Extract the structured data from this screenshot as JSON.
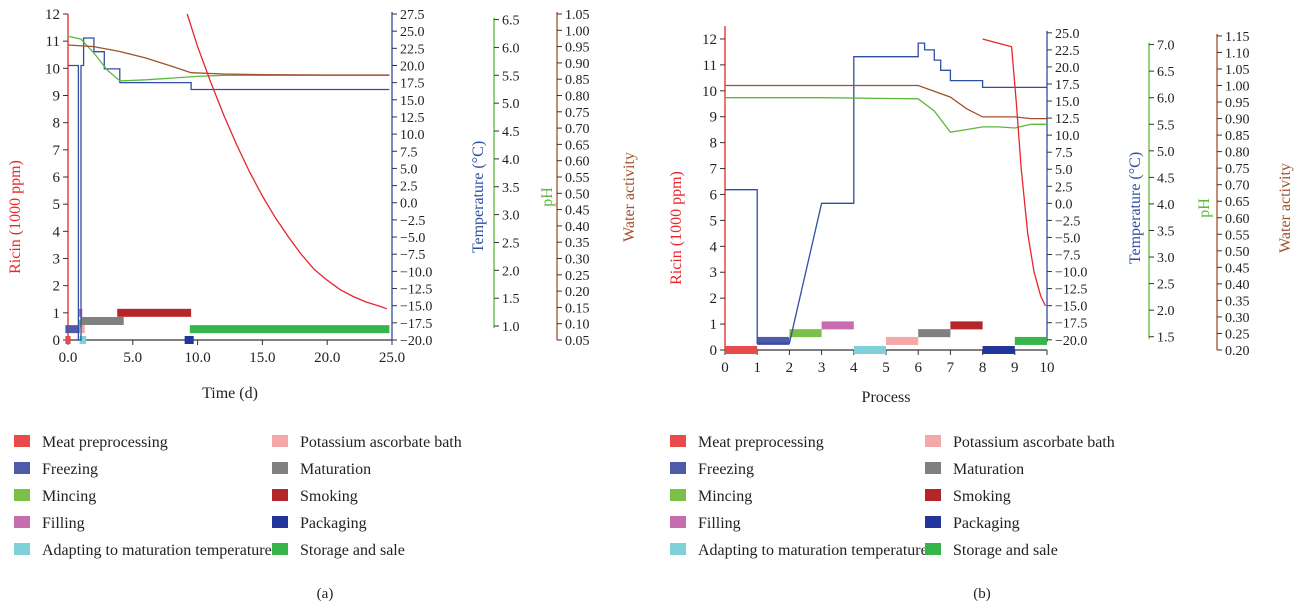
{
  "legend_items": [
    {
      "label": "Meat preprocessing",
      "color": "#e84b4b"
    },
    {
      "label": "Freezing",
      "color": "#4f5ba8"
    },
    {
      "label": "Mincing",
      "color": "#7cc04a"
    },
    {
      "label": "Filling",
      "color": "#c86cb0"
    },
    {
      "label": "Adapting to maturation temperature",
      "color": "#7fd0d8"
    },
    {
      "label": "Potassium ascorbate bath",
      "color": "#f4a8a8"
    },
    {
      "label": "Maturation",
      "color": "#808080"
    },
    {
      "label": "Smoking",
      "color": "#b5262b"
    },
    {
      "label": "Packaging",
      "color": "#22359a"
    },
    {
      "label": "Storage and sale",
      "color": "#35b54a"
    }
  ],
  "series_colors": {
    "ricin": "#e8262b",
    "temperature": "#2e4fa3",
    "ph": "#5cb83a",
    "water": "#a0522d"
  },
  "chart_data": [
    {
      "panel_label": "(a)",
      "type": "line",
      "xlabel": "Time (d)",
      "xlim": [
        0,
        25
      ],
      "x_ticks": [
        0,
        5,
        10,
        15,
        20,
        25
      ],
      "x_tick_labels": [
        "0.0",
        "5.0",
        "10.0",
        "15.0",
        "20.0",
        "25.0"
      ],
      "axes": {
        "ricin": {
          "label": "Ricin (1000 ppm)",
          "lim": [
            0,
            12
          ],
          "ticks": [
            0,
            1,
            2,
            3,
            4,
            5,
            6,
            7,
            8,
            9,
            10,
            11,
            12
          ],
          "tick_labels": [
            "0",
            "1",
            "2",
            "3",
            "4",
            "5",
            "6",
            "7",
            "8",
            "9",
            "10",
            "11",
            "12"
          ]
        },
        "temperature": {
          "label": "Temperature (°C)",
          "lim": [
            -20,
            27.5
          ],
          "ticks": [
            -20,
            -17.5,
            -15,
            -12.5,
            -10,
            -7.5,
            -5,
            -2.5,
            0,
            2.5,
            5,
            7.5,
            10,
            12.5,
            15,
            17.5,
            20,
            22.5,
            25,
            27.5
          ],
          "tick_labels": [
            "−20.0",
            "−17.5",
            "−15.0",
            "−12.5",
            "−10.0",
            "−7.5",
            "−5.0",
            "−2.5",
            "0.0",
            "2.5",
            "5.0",
            "7.5",
            "10.0",
            "12.5",
            "15.0",
            "17.5",
            "20.0",
            "22.5",
            "25.0",
            "27.5"
          ]
        },
        "ph": {
          "label": "pH",
          "lim": [
            0.75,
            6.6
          ],
          "ticks": [
            1,
            1.5,
            2,
            2.5,
            3,
            3.5,
            4,
            4.5,
            5,
            5.5,
            6,
            6.5
          ],
          "tick_labels": [
            "1.0",
            "1.5",
            "2.0",
            "2.5",
            "3.0",
            "3.5",
            "4.0",
            "4.5",
            "5.0",
            "5.5",
            "6.0",
            "6.5"
          ]
        },
        "water": {
          "label": "Water activity",
          "lim": [
            0.05,
            1.05
          ],
          "ticks": [
            0.05,
            0.1,
            0.15,
            0.2,
            0.25,
            0.3,
            0.35,
            0.4,
            0.45,
            0.5,
            0.55,
            0.6,
            0.65,
            0.7,
            0.75,
            0.8,
            0.85,
            0.9,
            0.95,
            1.0,
            1.05
          ],
          "tick_labels": [
            "0.05",
            "0.10",
            "0.15",
            "0.20",
            "0.25",
            "0.30",
            "0.35",
            "0.40",
            "0.45",
            "0.50",
            "0.55",
            "0.60",
            "0.65",
            "0.70",
            "0.75",
            "0.80",
            "0.85",
            "0.90",
            "0.95",
            "1.00",
            "1.05"
          ]
        }
      },
      "series": [
        {
          "key": "temperature",
          "step": true,
          "points": [
            [
              0,
              20
            ],
            [
              0.8,
              20
            ],
            [
              0.8,
              -20
            ],
            [
              1,
              -20
            ],
            [
              1,
              20
            ],
            [
              1.2,
              20
            ],
            [
              1.2,
              24
            ],
            [
              2,
              24
            ],
            [
              2,
              22
            ],
            [
              2.8,
              22
            ],
            [
              2.8,
              19.5
            ],
            [
              4,
              19.5
            ],
            [
              4,
              17.5
            ],
            [
              9.5,
              17.5
            ],
            [
              9.5,
              16.5
            ],
            [
              24.8,
              16.5
            ]
          ]
        },
        {
          "key": "ph",
          "points": [
            [
              0,
              6.2
            ],
            [
              1,
              6.15
            ],
            [
              2,
              5.9
            ],
            [
              3,
              5.6
            ],
            [
              4,
              5.4
            ],
            [
              6,
              5.42
            ],
            [
              8,
              5.45
            ],
            [
              10,
              5.48
            ],
            [
              12,
              5.5
            ],
            [
              15,
              5.5
            ],
            [
              20,
              5.5
            ],
            [
              24.8,
              5.5
            ]
          ]
        },
        {
          "key": "water",
          "points": [
            [
              0,
              0.955
            ],
            [
              2,
              0.95
            ],
            [
              4,
              0.935
            ],
            [
              6,
              0.915
            ],
            [
              8,
              0.89
            ],
            [
              9.5,
              0.87
            ],
            [
              12,
              0.866
            ],
            [
              15,
              0.864
            ],
            [
              20,
              0.863
            ],
            [
              24.8,
              0.863
            ]
          ]
        },
        {
          "key": "ricin",
          "points": [
            [
              9.2,
              12
            ],
            [
              10,
              10.8
            ],
            [
              11,
              9.5
            ],
            [
              12,
              8.3
            ],
            [
              13,
              7.2
            ],
            [
              14,
              6.2
            ],
            [
              15,
              5.3
            ],
            [
              16,
              4.5
            ],
            [
              17,
              3.8
            ],
            [
              18,
              3.15
            ],
            [
              19,
              2.6
            ],
            [
              20,
              2.2
            ],
            [
              21,
              1.85
            ],
            [
              22,
              1.6
            ],
            [
              23,
              1.4
            ],
            [
              24,
              1.25
            ],
            [
              24.6,
              1.15
            ]
          ]
        }
      ],
      "stage_bars": [
        {
          "stage": "Meat preprocessing",
          "y": 0,
          "x0": -0.2,
          "x1": 0.2
        },
        {
          "stage": "Freezing",
          "y": 0.4,
          "x0": -0.2,
          "x1": 0.9
        },
        {
          "stage": "Mincing",
          "y": 0.6,
          "x0": 0.8,
          "x1": 1.2
        },
        {
          "stage": "Filling",
          "y": 1.0,
          "x0": 0.8,
          "x1": 1.1
        },
        {
          "stage": "Adapting to maturation temperature",
          "y": 0,
          "x0": 0.9,
          "x1": 1.4
        },
        {
          "stage": "Potassium ascorbate bath",
          "y": 0.4,
          "x0": 1.0,
          "x1": 1.3
        },
        {
          "stage": "Maturation",
          "y": 0.7,
          "x0": 1.0,
          "x1": 4.3
        },
        {
          "stage": "Smoking",
          "y": 1.0,
          "x0": 3.8,
          "x1": 9.5
        },
        {
          "stage": "Packaging",
          "y": 0,
          "x0": 9.0,
          "x1": 9.7
        },
        {
          "stage": "Storage and sale",
          "y": 0.4,
          "x0": 9.4,
          "x1": 24.8
        }
      ]
    },
    {
      "panel_label": "(b)",
      "type": "line",
      "xlabel": "Process",
      "xlim": [
        0,
        10
      ],
      "x_ticks": [
        0,
        1,
        2,
        3,
        4,
        5,
        6,
        7,
        8,
        9,
        10
      ],
      "x_tick_labels": [
        "0",
        "1",
        "2",
        "3",
        "4",
        "5",
        "6",
        "7",
        "8",
        "9",
        "10"
      ],
      "axes": {
        "ricin": {
          "label": "Ricin (1000 ppm)",
          "lim": [
            0,
            12.5
          ],
          "ticks": [
            0,
            1,
            2,
            3,
            4,
            5,
            6,
            7,
            8,
            9,
            10,
            11,
            12
          ],
          "tick_labels": [
            "0",
            "1",
            "2",
            "3",
            "4",
            "5",
            "6",
            "7",
            "8",
            "9",
            "10",
            "11",
            "12"
          ]
        },
        "temperature": {
          "label": "Temperature (°C)",
          "lim": [
            -21.5,
            26
          ],
          "ticks": [
            -20,
            -17.5,
            -15,
            -12.5,
            -10,
            -7.5,
            -5,
            -2.5,
            0,
            2.5,
            5,
            7.5,
            10,
            12.5,
            15,
            17.5,
            20,
            22.5,
            25
          ],
          "tick_labels": [
            "−20.0",
            "−17.5",
            "−15.0",
            "−12.5",
            "−10.0",
            "−7.5",
            "−5.0",
            "−2.5",
            "0.0",
            "2.5",
            "5.0",
            "7.5",
            "10.0",
            "12.5",
            "15.0",
            "17.5",
            "20.0",
            "22.5",
            "25.0"
          ]
        },
        "ph": {
          "label": "pH",
          "lim": [
            1.25,
            7.35
          ],
          "ticks": [
            1.5,
            2,
            2.5,
            3,
            3.5,
            4,
            4.5,
            5,
            5.5,
            6,
            6.5,
            7
          ],
          "tick_labels": [
            "1.5",
            "2.0",
            "2.5",
            "3.0",
            "3.5",
            "4.0",
            "4.5",
            "5.0",
            "5.5",
            "6.0",
            "6.5",
            "7.0"
          ]
        },
        "water": {
          "label": "Water activity",
          "lim": [
            0.2,
            1.18
          ],
          "ticks": [
            0.2,
            0.25,
            0.3,
            0.35,
            0.4,
            0.45,
            0.5,
            0.55,
            0.6,
            0.65,
            0.7,
            0.75,
            0.8,
            0.85,
            0.9,
            0.95,
            1.0,
            1.05,
            1.1,
            1.15
          ],
          "tick_labels": [
            "0.20",
            "0.25",
            "0.30",
            "0.35",
            "0.40",
            "0.45",
            "0.50",
            "0.55",
            "0.60",
            "0.65",
            "0.70",
            "0.75",
            "0.80",
            "0.85",
            "0.90",
            "0.95",
            "1.00",
            "1.05",
            "1.10",
            "1.15"
          ]
        }
      },
      "series": [
        {
          "key": "temperature",
          "step": true,
          "points": [
            [
              0,
              2
            ],
            [
              1,
              2
            ],
            [
              1,
              -20.5
            ],
            [
              2,
              -20.5
            ],
            [
              3,
              0
            ],
            [
              4,
              0
            ],
            [
              4,
              21.5
            ],
            [
              6,
              21.5
            ],
            [
              6,
              23.5
            ],
            [
              6.2,
              23.5
            ],
            [
              6.2,
              22.5
            ],
            [
              6.5,
              22.5
            ],
            [
              6.5,
              21
            ],
            [
              6.7,
              21
            ],
            [
              6.7,
              19.5
            ],
            [
              7,
              19.5
            ],
            [
              7,
              18
            ],
            [
              8,
              18
            ],
            [
              8,
              17
            ],
            [
              10,
              17
            ]
          ]
        },
        {
          "key": "ph",
          "points": [
            [
              0,
              6.0
            ],
            [
              3,
              6.0
            ],
            [
              6,
              5.98
            ],
            [
              6.5,
              5.75
            ],
            [
              7,
              5.35
            ],
            [
              7.5,
              5.4
            ],
            [
              8,
              5.45
            ],
            [
              8.5,
              5.45
            ],
            [
              9,
              5.43
            ],
            [
              9.5,
              5.5
            ],
            [
              10,
              5.5
            ]
          ]
        },
        {
          "key": "water",
          "points": [
            [
              0,
              1.0
            ],
            [
              3,
              1.0
            ],
            [
              6,
              1.0
            ],
            [
              7,
              0.965
            ],
            [
              7.5,
              0.93
            ],
            [
              8,
              0.905
            ],
            [
              8.5,
              0.905
            ],
            [
              9,
              0.905
            ],
            [
              9.5,
              0.9
            ],
            [
              10,
              0.9
            ]
          ]
        },
        {
          "key": "ricin",
          "points": [
            [
              8,
              12
            ],
            [
              8.3,
              11.9
            ],
            [
              8.6,
              11.8
            ],
            [
              8.9,
              11.7
            ],
            [
              9.05,
              9.5
            ],
            [
              9.2,
              7.0
            ],
            [
              9.4,
              4.5
            ],
            [
              9.6,
              3.0
            ],
            [
              9.8,
              2.1
            ],
            [
              9.95,
              1.7
            ]
          ]
        }
      ],
      "stage_bars": [
        {
          "stage": "Meat preprocessing",
          "y": 0,
          "x0": 0,
          "x1": 1
        },
        {
          "stage": "Freezing",
          "y": 0.35,
          "x0": 1,
          "x1": 2
        },
        {
          "stage": "Mincing",
          "y": 0.65,
          "x0": 2,
          "x1": 3
        },
        {
          "stage": "Filling",
          "y": 0.95,
          "x0": 3,
          "x1": 4
        },
        {
          "stage": "Adapting to maturation temperature",
          "y": 0,
          "x0": 4,
          "x1": 5
        },
        {
          "stage": "Potassium ascorbate bath",
          "y": 0.35,
          "x0": 5,
          "x1": 6
        },
        {
          "stage": "Maturation",
          "y": 0.65,
          "x0": 6,
          "x1": 7
        },
        {
          "stage": "Smoking",
          "y": 0.95,
          "x0": 7,
          "x1": 8
        },
        {
          "stage": "Packaging",
          "y": 0,
          "x0": 8,
          "x1": 9
        },
        {
          "stage": "Storage and sale",
          "y": 0.35,
          "x0": 9,
          "x1": 10
        }
      ]
    }
  ]
}
